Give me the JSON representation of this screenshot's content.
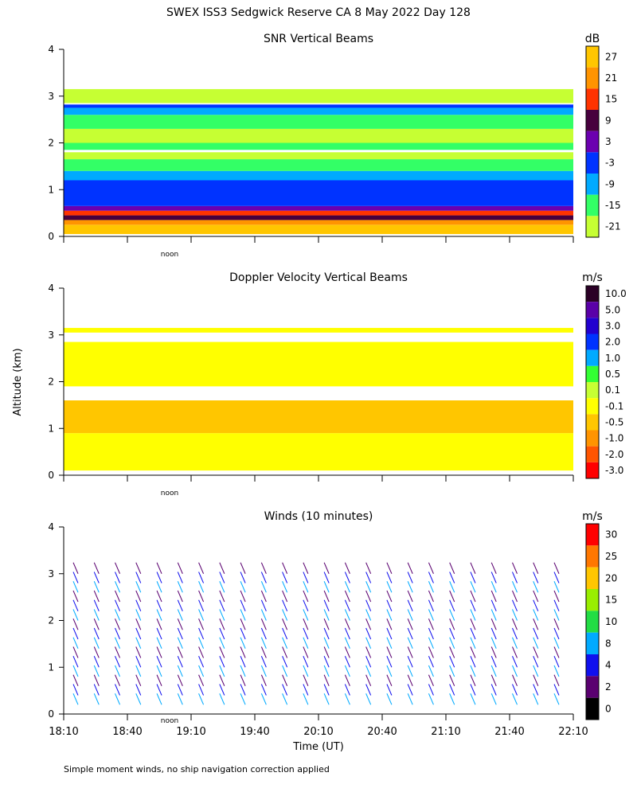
{
  "title": "SWEX ISS3 Sedgwick Reserve CA   8 May 2022 Day 128",
  "ylabel": "Altitude (km)",
  "xlabel": "Time (UT)",
  "footnote": "Simple moment winds, no ship navigation correction applied",
  "noon_label": "noon",
  "x_ticks": [
    "18:10",
    "18:40",
    "19:10",
    "19:40",
    "20:10",
    "20:40",
    "21:10",
    "21:40",
    "22:10"
  ],
  "chart_data": [
    {
      "type": "heatmap",
      "title": "SNR Vertical Beams",
      "unit": "dB",
      "ylim": [
        0,
        4
      ],
      "yticks": [
        "0",
        "1",
        "2",
        "3",
        "4"
      ],
      "colorbar": {
        "labels": [
          "27",
          "21",
          "15",
          "9",
          "3",
          "-3",
          "-9",
          "-15",
          "-21"
        ],
        "colors": [
          "#ffc600",
          "#ff9400",
          "#ff3300",
          "#47003e",
          "#6b00b0",
          "#0033ff",
          "#00aaff",
          "#33ff66",
          "#c6ff33"
        ]
      },
      "layers": [
        {
          "from": 0.05,
          "to": 0.25,
          "color": "#ffc600"
        },
        {
          "from": 0.25,
          "to": 0.35,
          "color": "#ff9400"
        },
        {
          "from": 0.35,
          "to": 0.45,
          "color": "#47003e"
        },
        {
          "from": 0.45,
          "to": 0.55,
          "color": "#ff3300"
        },
        {
          "from": 0.55,
          "to": 0.65,
          "color": "#6b00b0"
        },
        {
          "from": 0.65,
          "to": 1.2,
          "color": "#0033ff"
        },
        {
          "from": 1.2,
          "to": 1.4,
          "color": "#00aaff"
        },
        {
          "from": 1.4,
          "to": 1.65,
          "color": "#33ff66"
        },
        {
          "from": 1.65,
          "to": 1.8,
          "color": "#c6ff33"
        },
        {
          "from": 1.85,
          "to": 2.0,
          "color": "#33ff66"
        },
        {
          "from": 2.0,
          "to": 2.3,
          "color": "#c6ff33"
        },
        {
          "from": 2.3,
          "to": 2.6,
          "color": "#33ff66"
        },
        {
          "from": 2.6,
          "to": 2.75,
          "color": "#00aaff"
        },
        {
          "from": 2.75,
          "to": 2.82,
          "color": "#0033ff"
        },
        {
          "from": 2.85,
          "to": 3.15,
          "color": "#c6ff33"
        }
      ]
    },
    {
      "type": "heatmap",
      "title": "Doppler Velocity Vertical Beams",
      "unit": "m/s",
      "ylim": [
        0,
        4
      ],
      "yticks": [
        "0",
        "1",
        "2",
        "3",
        "4"
      ],
      "colorbar": {
        "labels": [
          "10.0",
          "5.0",
          "3.0",
          "2.0",
          "1.0",
          "0.5",
          "0.1",
          "-0.1",
          "-0.5",
          "-1.0",
          "-2.0",
          "-3.0"
        ],
        "colors": [
          "#2b0026",
          "#5a00a8",
          "#2200d0",
          "#0033ff",
          "#00aaff",
          "#33ff33",
          "#c6ff33",
          "#ffff00",
          "#ffc600",
          "#ff9400",
          "#ff5500",
          "#ff0000"
        ]
      },
      "layers": [
        {
          "from": 0.1,
          "to": 0.9,
          "color": "#ffff00"
        },
        {
          "from": 0.9,
          "to": 1.6,
          "color": "#ffc600"
        },
        {
          "from": 1.9,
          "to": 2.85,
          "color": "#ffff00"
        },
        {
          "from": 3.05,
          "to": 3.15,
          "color": "#ffff00"
        }
      ]
    },
    {
      "type": "scatter",
      "title": "Winds (10 minutes)",
      "unit": "m/s",
      "ylim": [
        0,
        4
      ],
      "yticks": [
        "0",
        "1",
        "2",
        "3",
        "4"
      ],
      "x_columns": [
        "18:14",
        "18:24",
        "18:34",
        "18:44",
        "18:54",
        "19:04",
        "19:14",
        "19:24",
        "19:34",
        "19:44",
        "19:54",
        "20:04",
        "20:14",
        "20:24",
        "20:34",
        "20:44",
        "20:54",
        "21:04",
        "21:14",
        "21:24",
        "21:34",
        "21:44",
        "21:54",
        "22:04"
      ],
      "barb_rows_km": [
        0.2,
        0.4,
        0.6,
        0.8,
        1.0,
        1.2,
        1.4,
        1.6,
        1.8,
        2.0,
        2.2,
        2.4,
        2.6,
        2.8,
        3.0
      ],
      "colorbar": {
        "labels": [
          "30",
          "25",
          "20",
          "15",
          "10",
          "8",
          "4",
          "2",
          "0"
        ],
        "colors": [
          "#ff0000",
          "#ff7700",
          "#ffc600",
          "#99ee00",
          "#22dd44",
          "#00aaff",
          "#1010ee",
          "#5a0070",
          "#000000"
        ]
      }
    }
  ]
}
